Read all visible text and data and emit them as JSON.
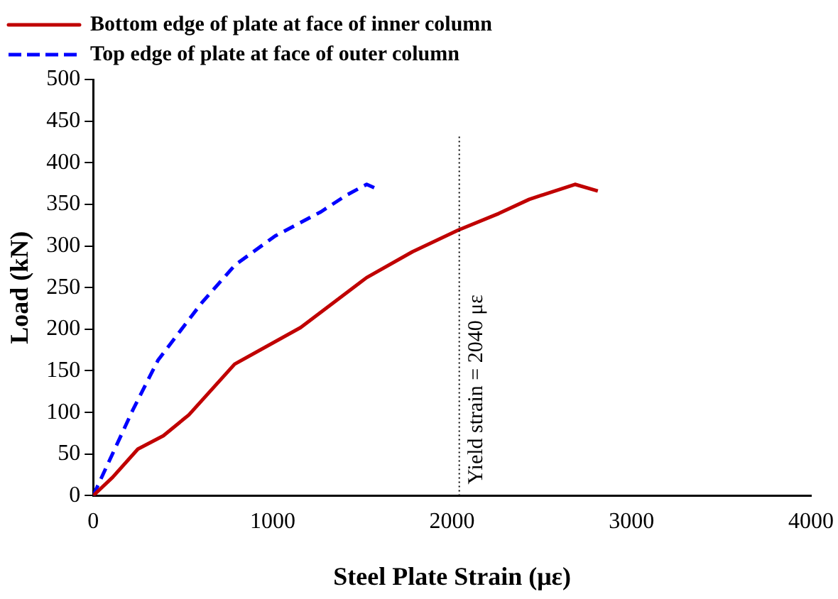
{
  "chart_data": {
    "type": "line",
    "xlabel": "Steel Plate Strain (με)",
    "ylabel": "Load (kN)",
    "xlim": [
      0,
      4000
    ],
    "xticks": [
      0,
      1000,
      2000,
      3000,
      4000
    ],
    "ylim": [
      0,
      500
    ],
    "yticks": [
      0,
      50,
      100,
      150,
      200,
      250,
      300,
      350,
      400,
      450,
      500
    ],
    "grid": false,
    "legend": "top",
    "marker": "none",
    "series": [
      {
        "name": "Bottom edge of plate at face of inner column",
        "color": "#c00000",
        "line_style": "solid",
        "x": [
          0,
          108,
          249,
          391,
          533,
          788,
          1156,
          1524,
          1779,
          2034,
          2260,
          2430,
          2685,
          2812
        ],
        "values": [
          0,
          22,
          56,
          72,
          97,
          158,
          202,
          262,
          293,
          319,
          339,
          356,
          374,
          366
        ]
      },
      {
        "name": "Top edge of plate at face of outer column",
        "color": "#0000ff",
        "line_style": "dashed",
        "x": [
          0,
          221,
          362,
          606,
          790,
          1014,
          1269,
          1411,
          1524,
          1566
        ],
        "values": [
          0,
          103,
          163,
          232,
          277,
          312,
          341,
          361,
          374,
          370
        ]
      }
    ],
    "ref_lines": [
      {
        "axis": "x",
        "value": 2040,
        "label": "Yield strain = 2040 με",
        "color": "#000000",
        "line_style": "dotted"
      }
    ]
  }
}
